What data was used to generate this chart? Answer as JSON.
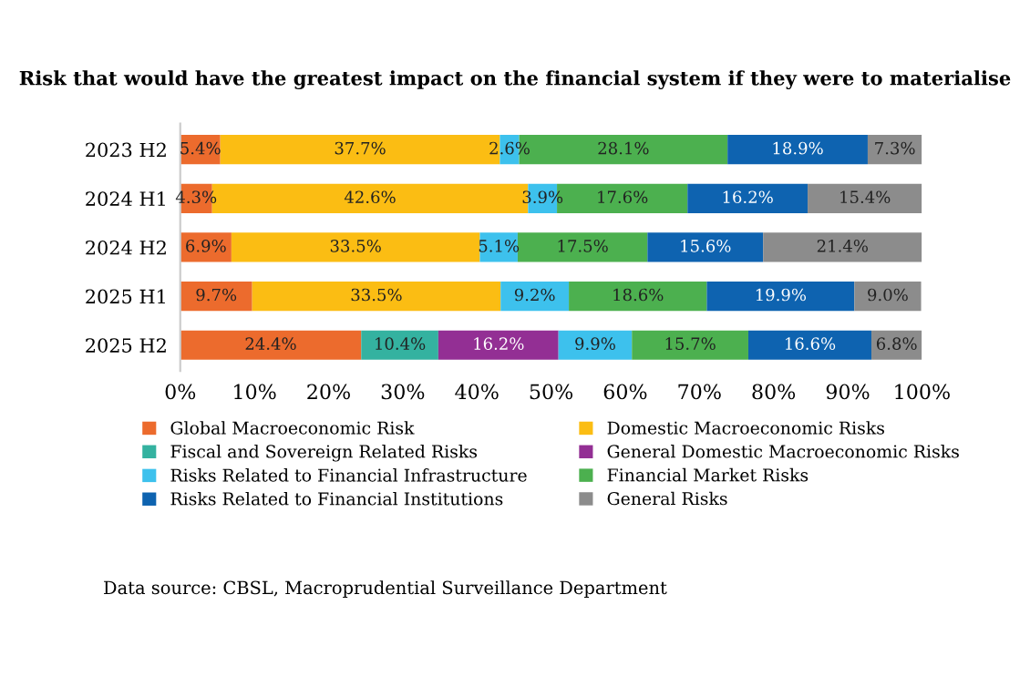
{
  "chart_data": {
    "type": "bar",
    "orientation": "horizontal",
    "stacked": true,
    "title": "Risk that would have the greatest impact on the financial system if they were to materialise",
    "categories": [
      "2023 H2",
      "2024 H1",
      "2024 H2",
      "2025 H1",
      "2025 H2"
    ],
    "series": [
      {
        "name": "Global Macroeconomic Risk",
        "color": "#ec6b2d",
        "values": [
          5.4,
          4.3,
          6.9,
          9.7,
          24.4
        ],
        "value_labels": [
          "5.4%",
          "4.3%",
          "6.9%",
          "9.7%",
          "24.4%"
        ]
      },
      {
        "name": "Domestic Macroeconomic Risks",
        "color": "#fbbd13",
        "values": [
          37.7,
          42.6,
          33.5,
          33.5,
          null
        ],
        "value_labels": [
          "37.7%",
          "42.6%",
          "33.5%",
          "33.5%",
          null
        ]
      },
      {
        "name": "Fiscal and Sovereign Related Risks",
        "color": "#34b2a0",
        "values": [
          null,
          null,
          null,
          null,
          10.4
        ],
        "value_labels": [
          null,
          null,
          null,
          null,
          "10.4%"
        ]
      },
      {
        "name": "General Domestic Macroeconomic Risks",
        "color": "#932f94",
        "values": [
          null,
          null,
          null,
          null,
          16.2
        ],
        "value_labels": [
          null,
          null,
          null,
          null,
          "16.2%"
        ]
      },
      {
        "name": "Risks Related to Financial Infrastructure",
        "color": "#3dc1ed",
        "values": [
          2.6,
          3.9,
          5.1,
          9.2,
          9.9
        ],
        "value_labels": [
          "2.6%",
          "3.9%",
          "5.1%",
          "9.2%",
          "9.9%"
        ]
      },
      {
        "name": "Financial Market Risks",
        "color": "#4cb04f",
        "values": [
          28.1,
          17.6,
          17.5,
          18.6,
          15.7
        ],
        "value_labels": [
          "28.1%",
          "17.6%",
          "17.5%",
          "18.6%",
          "15.7%"
        ]
      },
      {
        "name": "Risks Related to Financial Institutions",
        "color": "#0e63b0",
        "values": [
          18.9,
          16.2,
          15.6,
          19.9,
          16.6
        ],
        "value_labels": [
          "18.9%",
          "16.2%",
          "15.6%",
          "19.9%",
          "16.6%"
        ]
      },
      {
        "name": "General Risks",
        "color": "#8c8c8c",
        "values": [
          7.3,
          15.4,
          21.4,
          9.0,
          6.8
        ],
        "value_labels": [
          "7.3%",
          "15.4%",
          "21.4%",
          "9.0%",
          "6.8%"
        ]
      }
    ],
    "xlim": [
      0,
      100
    ],
    "xticks": [
      {
        "value": 0,
        "label": "0%"
      },
      {
        "value": 10,
        "label": "10%"
      },
      {
        "value": 20,
        "label": "20%"
      },
      {
        "value": 30,
        "label": "30%"
      },
      {
        "value": 40,
        "label": "40%"
      },
      {
        "value": 50,
        "label": "50%"
      },
      {
        "value": 60,
        "label": "60%"
      },
      {
        "value": 70,
        "label": "70%"
      },
      {
        "value": 80,
        "label": "80%"
      },
      {
        "value": 90,
        "label": "90%"
      },
      {
        "value": 100,
        "label": "100%"
      }
    ],
    "grid": false,
    "legend": "bottom",
    "annotations": [
      "Data source: CBSL, Macroprudential Surveillance Department"
    ]
  }
}
